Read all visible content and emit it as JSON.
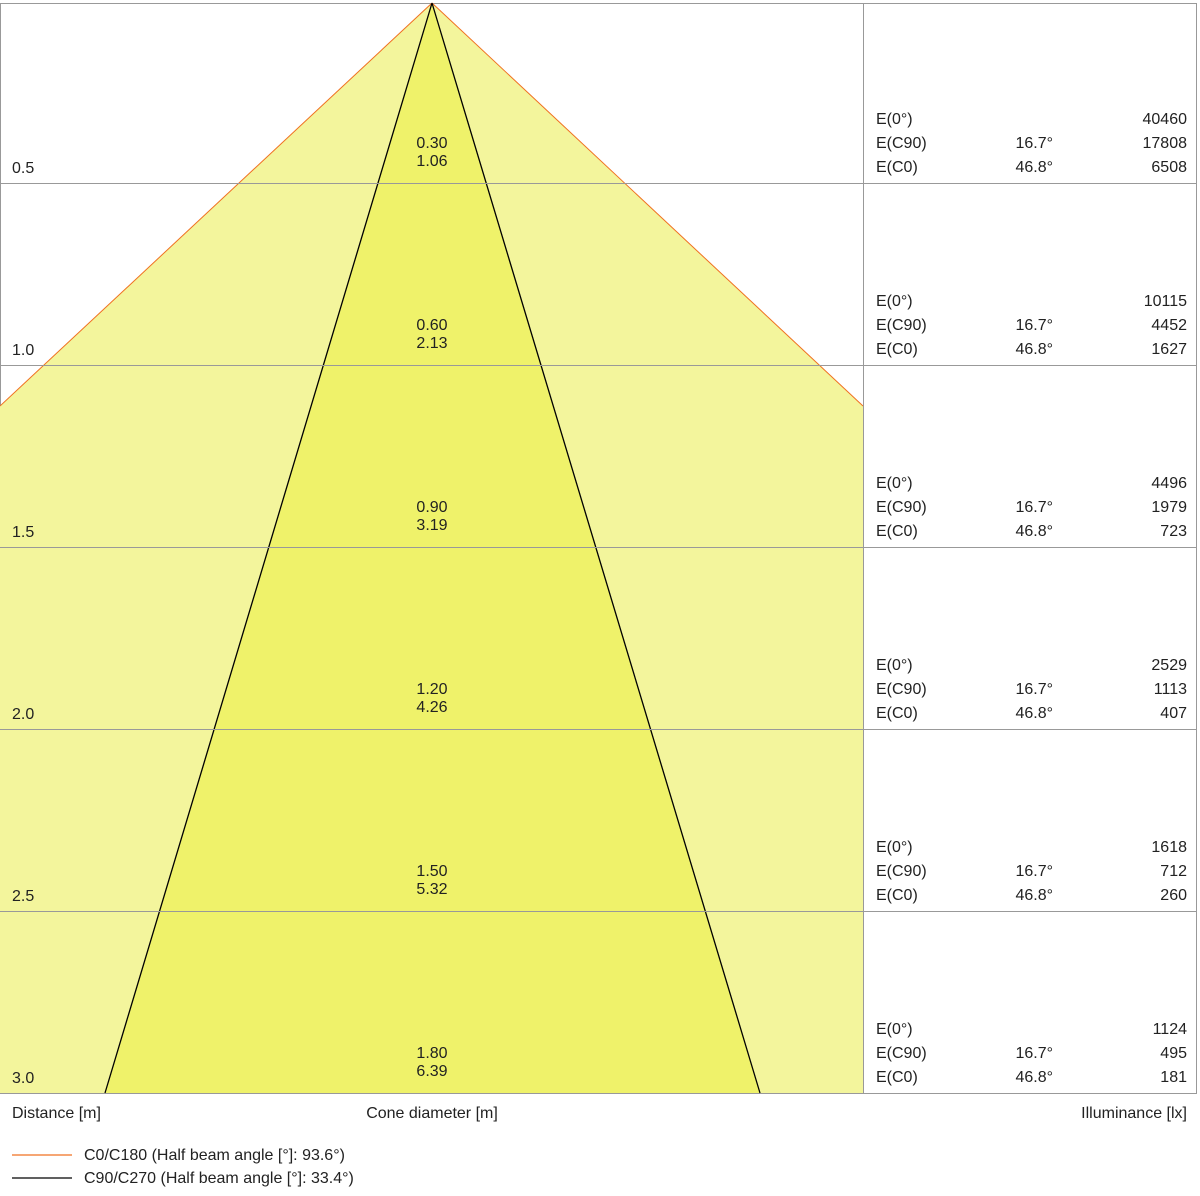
{
  "labels": {
    "e0": "E(0°)",
    "ec90": "E(C90)",
    "ec0": "E(C0)"
  },
  "rows": [
    {
      "distance": "0.5",
      "cone": [
        "0.30",
        "1.06"
      ],
      "e0": "40460",
      "ec90_angle": "16.7°",
      "ec90": "17808",
      "ec0_angle": "46.8°",
      "ec0": "6508"
    },
    {
      "distance": "1.0",
      "cone": [
        "0.60",
        "2.13"
      ],
      "e0": "10115",
      "ec90_angle": "16.7°",
      "ec90": "4452",
      "ec0_angle": "46.8°",
      "ec0": "1627"
    },
    {
      "distance": "1.5",
      "cone": [
        "0.90",
        "3.19"
      ],
      "e0": "4496",
      "ec90_angle": "16.7°",
      "ec90": "1979",
      "ec0_angle": "46.8°",
      "ec0": "723"
    },
    {
      "distance": "2.0",
      "cone": [
        "1.20",
        "4.26"
      ],
      "e0": "2529",
      "ec90_angle": "16.7°",
      "ec90": "1113",
      "ec0_angle": "46.8°",
      "ec0": "407"
    },
    {
      "distance": "2.5",
      "cone": [
        "1.50",
        "5.32"
      ],
      "e0": "1618",
      "ec90_angle": "16.7°",
      "ec90": "712",
      "ec0_angle": "46.8°",
      "ec0": "260"
    },
    {
      "distance": "3.0",
      "cone": [
        "1.80",
        "6.39"
      ],
      "e0": "1124",
      "ec90_angle": "16.7°",
      "ec90": "495",
      "ec0_angle": "46.8°",
      "ec0": "181"
    }
  ],
  "footer": {
    "distance": "Distance [m]",
    "cone": "Cone diameter [m]",
    "illuminance": "Illuminance [lx]"
  },
  "legend": [
    {
      "label": "C0/C180 (Half beam angle [°]: 93.6°)",
      "color": "#f07020"
    },
    {
      "label": "C90/C270 (Half beam angle [°]: 33.4°)",
      "color": "#000000"
    }
  ]
}
